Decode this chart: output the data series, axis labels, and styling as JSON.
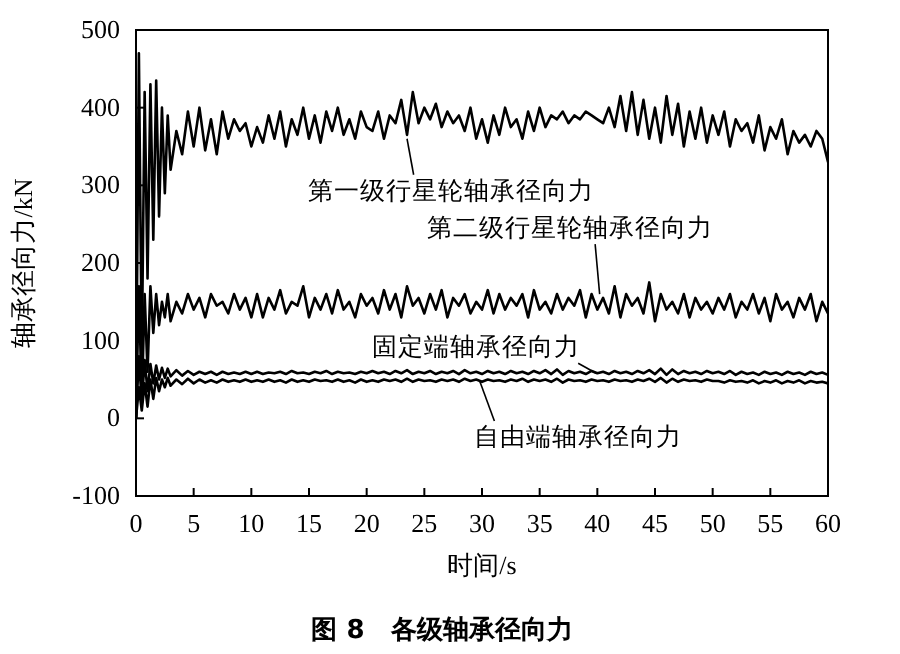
{
  "chart_data": {
    "type": "line",
    "title": "图 8　各级轴承径向力",
    "xlabel": "时间/s",
    "ylabel": "轴承径向力/kN",
    "xlim": [
      0,
      60
    ],
    "xticks": [
      0,
      5,
      10,
      15,
      20,
      25,
      30,
      35,
      40,
      45,
      50,
      55,
      60
    ],
    "ylim": [
      -100,
      500
    ],
    "yticks": [
      -100,
      0,
      100,
      200,
      300,
      400,
      500
    ],
    "grid": false,
    "marker": "none",
    "line_style": "solid",
    "x": [
      0,
      0.25,
      0.5,
      0.75,
      1,
      1.25,
      1.5,
      1.75,
      2,
      2.25,
      2.5,
      2.75,
      3,
      3.5,
      4,
      4.5,
      5,
      5.5,
      6,
      6.5,
      7,
      7.5,
      8,
      8.5,
      9,
      9.5,
      10,
      10.5,
      11,
      11.5,
      12,
      12.5,
      13,
      13.5,
      14,
      14.5,
      15,
      15.5,
      16,
      16.5,
      17,
      17.5,
      18,
      18.5,
      19,
      19.5,
      20,
      20.5,
      21,
      21.5,
      22,
      22.5,
      23,
      23.5,
      24,
      24.5,
      25,
      25.5,
      26,
      26.5,
      27,
      27.5,
      28,
      28.5,
      29,
      29.5,
      30,
      30.5,
      31,
      31.5,
      32,
      32.5,
      33,
      33.5,
      34,
      34.5,
      35,
      35.5,
      36,
      36.5,
      37,
      37.5,
      38,
      38.5,
      39,
      39.5,
      40,
      40.5,
      41,
      41.5,
      42,
      42.5,
      43,
      43.5,
      44,
      44.5,
      45,
      45.5,
      46,
      46.5,
      47,
      47.5,
      48,
      48.5,
      49,
      49.5,
      50,
      50.5,
      51,
      51.5,
      52,
      52.5,
      53,
      53.5,
      54,
      54.5,
      55,
      55.5,
      56,
      56.5,
      57,
      57.5,
      58,
      58.5,
      59,
      59.5,
      60
    ],
    "series": [
      {
        "color": "#000000",
        "values": [
          0,
          470,
          80,
          420,
          180,
          430,
          230,
          435,
          260,
          400,
          290,
          390,
          320,
          370,
          340,
          395,
          350,
          400,
          345,
          385,
          340,
          395,
          360,
          385,
          370,
          380,
          350,
          375,
          355,
          390,
          360,
          395,
          350,
          385,
          365,
          400,
          360,
          390,
          355,
          395,
          370,
          400,
          365,
          385,
          360,
          395,
          375,
          370,
          395,
          360,
          390,
          380,
          410,
          365,
          420,
          380,
          400,
          385,
          405,
          375,
          395,
          380,
          390,
          370,
          400,
          360,
          385,
          355,
          390,
          365,
          400,
          375,
          385,
          360,
          395,
          370,
          400,
          375,
          390,
          385,
          395,
          380,
          390,
          385,
          395,
          390,
          385,
          380,
          400,
          375,
          415,
          370,
          420,
          365,
          410,
          360,
          400,
          355,
          415,
          365,
          405,
          350,
          395,
          360,
          400,
          355,
          390,
          365,
          395,
          350,
          385,
          370,
          380,
          355,
          390,
          345,
          375,
          360,
          385,
          340,
          370,
          355,
          365,
          350,
          370,
          360,
          330
        ]
      },
      {
        "color": "#000000",
        "values": [
          0,
          170,
          20,
          160,
          60,
          170,
          110,
          160,
          120,
          150,
          130,
          160,
          125,
          150,
          135,
          160,
          140,
          155,
          130,
          160,
          145,
          150,
          135,
          160,
          140,
          155,
          130,
          160,
          130,
          155,
          140,
          165,
          135,
          150,
          145,
          170,
          130,
          155,
          140,
          160,
          135,
          165,
          140,
          150,
          130,
          160,
          145,
          155,
          135,
          165,
          140,
          160,
          130,
          170,
          145,
          155,
          135,
          160,
          140,
          165,
          130,
          155,
          145,
          160,
          135,
          150,
          140,
          165,
          135,
          160,
          140,
          155,
          145,
          160,
          130,
          165,
          140,
          150,
          135,
          160,
          140,
          155,
          145,
          165,
          130,
          160,
          140,
          155,
          135,
          170,
          130,
          160,
          145,
          155,
          135,
          175,
          125,
          160,
          140,
          150,
          135,
          160,
          130,
          155,
          140,
          150,
          135,
          155,
          140,
          160,
          130,
          150,
          140,
          160,
          135,
          155,
          125,
          160,
          140,
          150,
          130,
          155,
          140,
          160,
          125,
          150,
          135
        ]
      },
      {
        "color": "#000000",
        "values": [
          0,
          80,
          20,
          75,
          35,
          70,
          45,
          68,
          50,
          65,
          52,
          64,
          54,
          62,
          55,
          61,
          56,
          60,
          57,
          60,
          56,
          60,
          57,
          59,
          57,
          60,
          57,
          60,
          57,
          59,
          58,
          60,
          57,
          61,
          58,
          59,
          57,
          60,
          58,
          61,
          57,
          60,
          58,
          59,
          57,
          60,
          58,
          61,
          58,
          60,
          57,
          61,
          58,
          62,
          57,
          60,
          58,
          61,
          57,
          60,
          58,
          61,
          57,
          62,
          58,
          60,
          57,
          61,
          58,
          60,
          57,
          61,
          58,
          60,
          57,
          61,
          58,
          62,
          57,
          63,
          56,
          61,
          58,
          60,
          57,
          61,
          58,
          60,
          57,
          61,
          58,
          60,
          57,
          61,
          58,
          62,
          57,
          64,
          56,
          63,
          57,
          61,
          58,
          60,
          57,
          61,
          58,
          60,
          57,
          61,
          56,
          60,
          57,
          59,
          56,
          60,
          57,
          59,
          56,
          60,
          57,
          59,
          56,
          60,
          57,
          59,
          56
        ]
      },
      {
        "color": "#000000",
        "values": [
          0,
          40,
          10,
          45,
          15,
          50,
          25,
          52,
          35,
          50,
          40,
          52,
          42,
          50,
          44,
          51,
          45,
          50,
          46,
          49,
          46,
          50,
          47,
          49,
          47,
          50,
          47,
          49,
          47,
          50,
          47,
          49,
          46,
          50,
          47,
          49,
          47,
          50,
          48,
          49,
          47,
          50,
          47,
          49,
          46,
          50,
          47,
          49,
          47,
          50,
          48,
          50,
          47,
          51,
          47,
          50,
          48,
          49,
          47,
          50,
          48,
          50,
          47,
          51,
          48,
          50,
          47,
          50,
          48,
          49,
          47,
          50,
          48,
          51,
          47,
          50,
          48,
          50,
          47,
          51,
          46,
          50,
          48,
          49,
          47,
          50,
          48,
          49,
          47,
          50,
          48,
          49,
          47,
          50,
          48,
          51,
          47,
          52,
          46,
          51,
          47,
          50,
          48,
          49,
          47,
          50,
          48,
          48,
          46,
          49,
          47,
          48,
          46,
          49,
          45,
          48,
          46,
          49,
          45,
          48,
          46,
          49,
          45,
          48,
          46,
          47,
          45
        ]
      }
    ],
    "annotations": [
      {
        "text": "第一级行星轮轴承径向力",
        "x": 23.5,
        "y": 360
      },
      {
        "text": "第二级行星轮轴承径向力",
        "x": 40.2,
        "y": 160
      },
      {
        "text": "固定端轴承径向力",
        "x": 39.9,
        "y": 58
      },
      {
        "text": "自由端轴承径向力",
        "x": 29.8,
        "y": 48
      }
    ]
  }
}
